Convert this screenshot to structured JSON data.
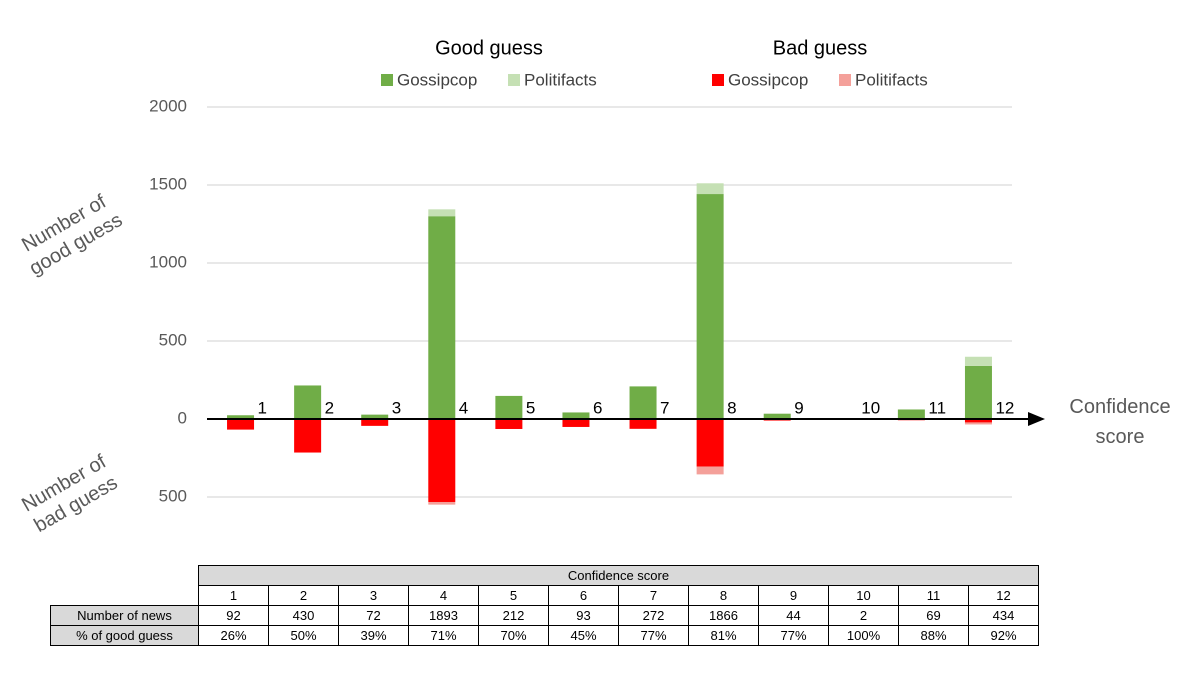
{
  "chart_data": {
    "type": "diverging-stacked-bar",
    "categories": [
      "1",
      "2",
      "3",
      "4",
      "5",
      "6",
      "7",
      "8",
      "9",
      "10",
      "11",
      "12"
    ],
    "series": [
      {
        "name": "Gossipcop",
        "group": "Good guess",
        "color": "#70ad47",
        "values": [
          24,
          215,
          28,
          1300,
          148,
          42,
          209,
          1442,
          34,
          2,
          61,
          340
        ]
      },
      {
        "name": "Politifacts",
        "group": "Good guess",
        "color": "#c5e0b4",
        "values": [
          0,
          0,
          0,
          44,
          0,
          0,
          0,
          69,
          0,
          0,
          0,
          59
        ]
      },
      {
        "name": "Gossipcop",
        "group": "Bad guess",
        "color": "#ff0000",
        "values": [
          -68,
          -215,
          -44,
          -532,
          -64,
          -51,
          -63,
          -305,
          -10,
          0,
          -8,
          -22
        ]
      },
      {
        "name": "Politifacts",
        "group": "Bad guess",
        "color": "#f4a09a",
        "values": [
          0,
          0,
          0,
          -17,
          0,
          0,
          0,
          -50,
          0,
          0,
          0,
          -13
        ]
      }
    ],
    "ylim": [
      -500,
      2000
    ],
    "yticks": [
      {
        "value": -500,
        "label": "500"
      },
      0,
      500,
      1000,
      1500,
      2000
    ],
    "ylabel_positive": "Number of good guess",
    "ylabel_negative": "Number of bad guess",
    "xlabel": "Confidence score",
    "grid": true
  },
  "table": {
    "title": "Confidence score",
    "rows": [
      {
        "label": "Number of news",
        "cells": [
          "92",
          "430",
          "72",
          "1893",
          "212",
          "93",
          "272",
          "1866",
          "44",
          "2",
          "69",
          "434"
        ]
      },
      {
        "label": "% of good guess",
        "cells": [
          "26%",
          "50%",
          "39%",
          "71%",
          "70%",
          "45%",
          "77%",
          "81%",
          "77%",
          "100%",
          "88%",
          "92%"
        ]
      }
    ]
  }
}
